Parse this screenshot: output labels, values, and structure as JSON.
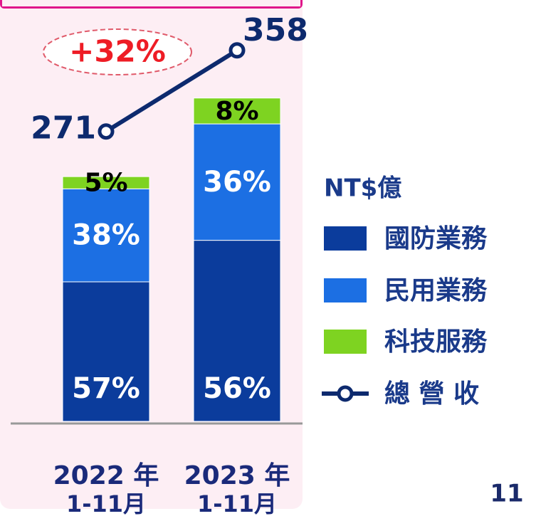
{
  "chart_data": {
    "type": "stacked-bar-line",
    "annotation": "+32%",
    "page_number": "11",
    "legend_title": "NT$億",
    "categories": [
      [
        "2022 年",
        "1-11月"
      ],
      [
        "2023 年",
        "1-11月"
      ]
    ],
    "ylim": [
      0,
      450
    ],
    "y2lim": [
      -40,
      396
    ],
    "series": [
      {
        "name": "國防業務",
        "color": "#0b3c9c",
        "values": [
          57,
          56
        ],
        "value_labels": [
          "57%",
          "56%"
        ],
        "label_color": "#ffffff"
      },
      {
        "name": "民用業務",
        "color": "#1c6fe3",
        "values": [
          38,
          36
        ],
        "value_labels": [
          "38%",
          "36%"
        ],
        "label_color": "#ffffff"
      },
      {
        "name": "科技服務",
        "color": "#7ed321",
        "values": [
          5,
          8
        ],
        "value_labels": [
          "5%",
          "8%"
        ],
        "label_color": "#000000"
      }
    ],
    "line": {
      "name": "總 營 收",
      "color": "#0d2a6e",
      "axis": "y2",
      "values": [
        271,
        358
      ]
    }
  }
}
